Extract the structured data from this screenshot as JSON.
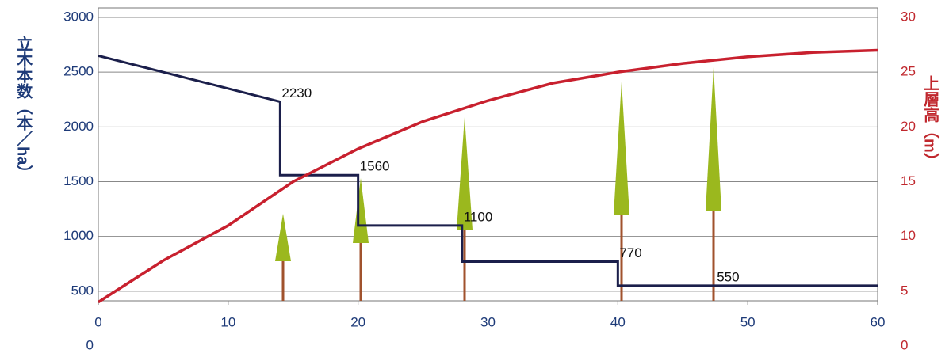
{
  "chart_data": {
    "type": "line",
    "y_label": "立木本数（本／ha）",
    "y2_label": "上層高（m）",
    "xlim": [
      0,
      60
    ],
    "xticks": [
      0,
      10,
      20,
      30,
      40,
      50,
      60
    ],
    "ylim": [
      0,
      3000
    ],
    "yticks": [
      0,
      500,
      1000,
      1500,
      2000,
      2500,
      3000
    ],
    "y2lim": [
      0,
      30
    ],
    "y2ticks": [
      0,
      5,
      10,
      15,
      20,
      25,
      30
    ],
    "grid": true,
    "series": [
      {
        "color": "#1b1f4b",
        "x": [
          0,
          14,
          14,
          20,
          20,
          28,
          28,
          40,
          40,
          60
        ],
        "values": [
          2650,
          2230,
          1560,
          1560,
          1100,
          1100,
          770,
          770,
          550,
          550
        ]
      },
      {
        "color": "#c8202e",
        "axis": "y2",
        "x": [
          0,
          5,
          10,
          15,
          20,
          25,
          30,
          35,
          40,
          45,
          50,
          55,
          60
        ],
        "values": [
          4,
          7.8,
          11,
          15,
          18,
          20.5,
          22.4,
          24,
          25,
          25.8,
          26.4,
          26.8,
          27
        ]
      }
    ],
    "annotations": [
      {
        "x": 14,
        "y": 2230
      },
      {
        "x": 20,
        "y": 1560
      },
      {
        "x": 28,
        "y": 1100
      },
      {
        "x": 40,
        "y": 770
      },
      {
        "x": 47.5,
        "y": 550
      }
    ]
  }
}
